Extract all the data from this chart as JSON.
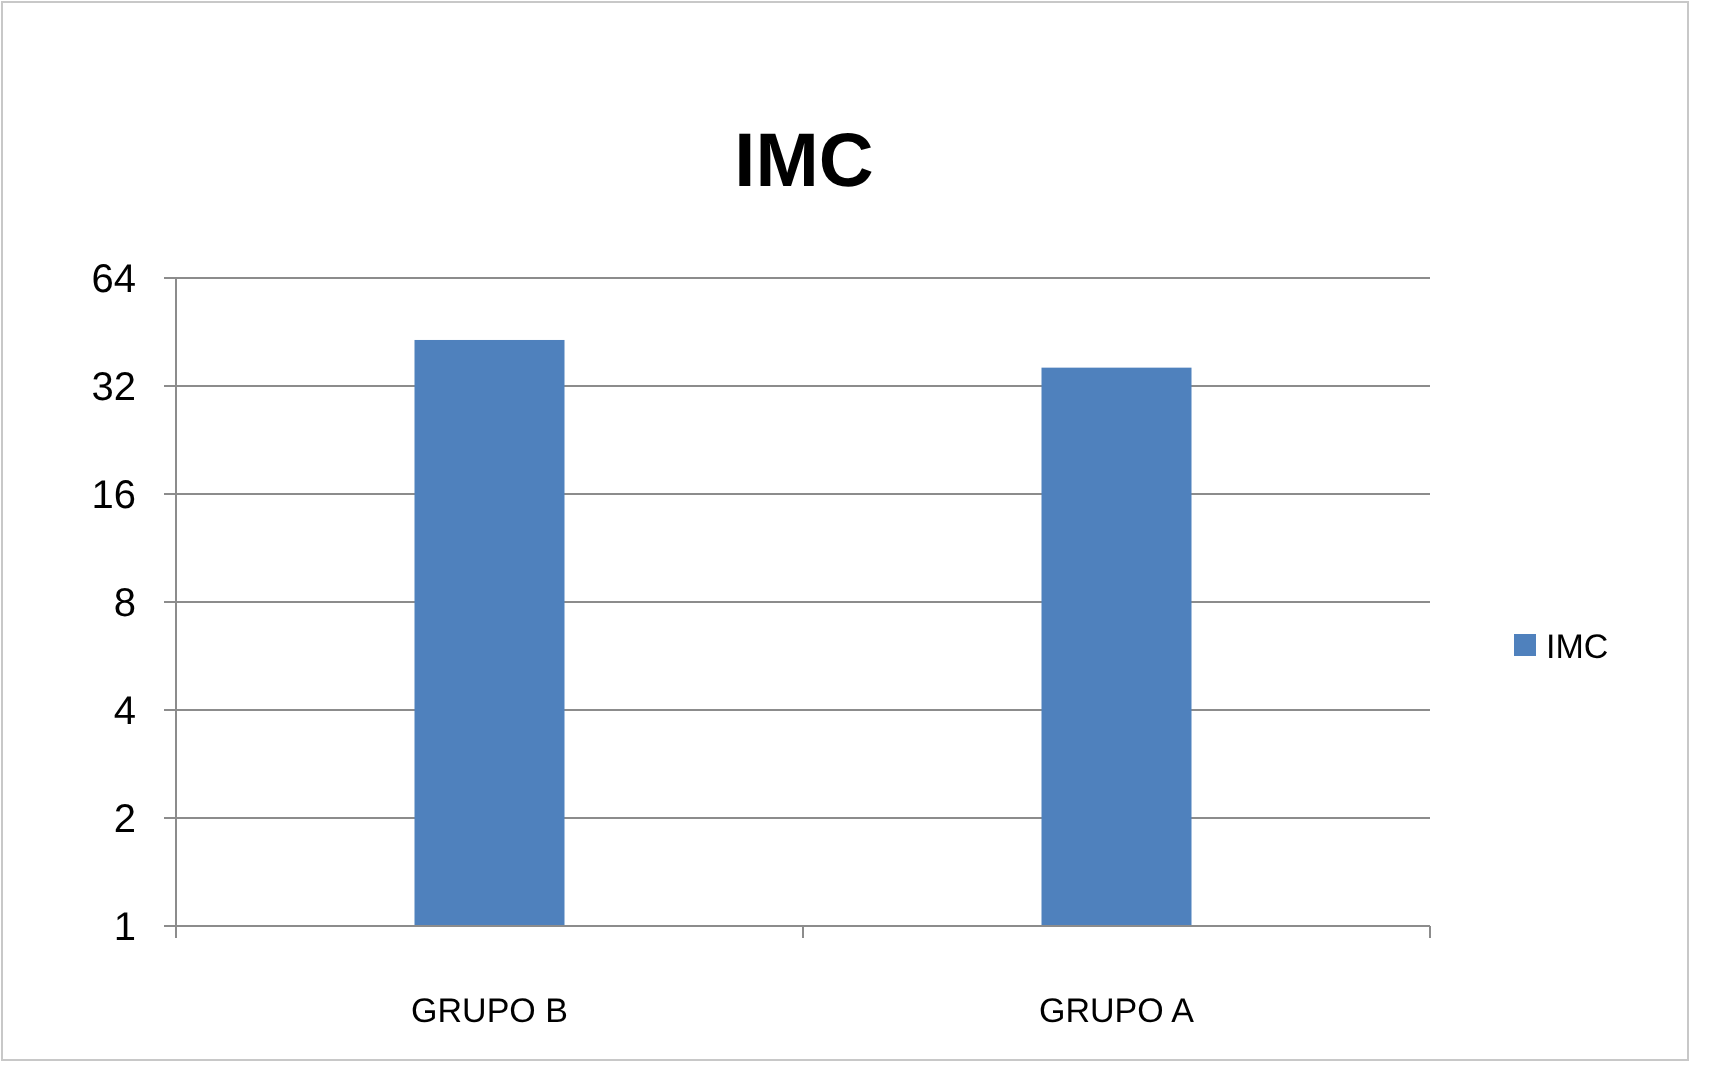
{
  "chart_data": {
    "type": "bar",
    "title": "IMC",
    "categories": [
      "GRUPO B",
      "GRUPO A"
    ],
    "series": [
      {
        "name": "IMC",
        "color": "#4f81bd",
        "values": [
          43,
          36
        ]
      }
    ],
    "log": "y",
    "ylim": [
      1,
      64
    ],
    "yticks": [
      1,
      2,
      4,
      8,
      16,
      32,
      64
    ],
    "grid": "y",
    "legend": "right"
  }
}
